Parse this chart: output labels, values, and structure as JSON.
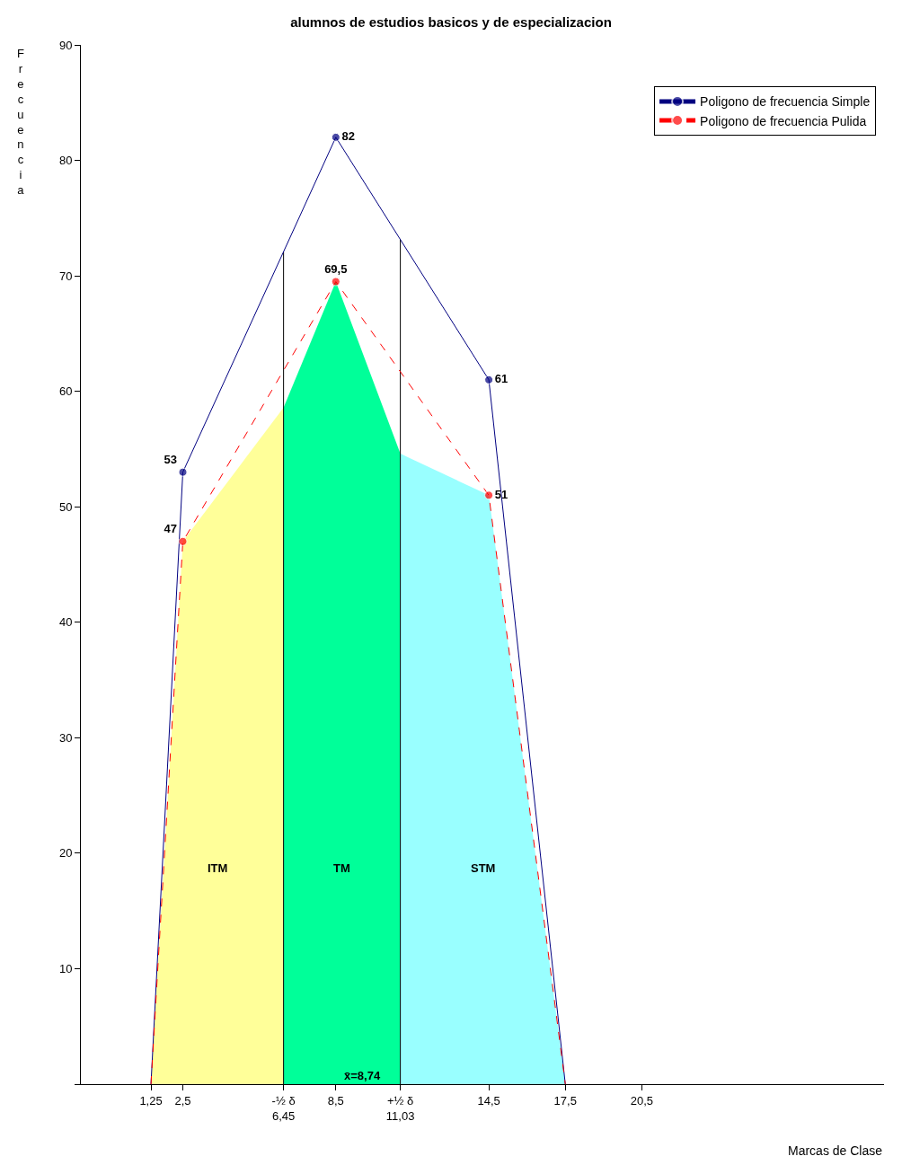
{
  "chart_data": {
    "type": "line",
    "title": "alumnos de estudios basicos y de especializacion",
    "xlabel": "Marcas de Clase",
    "ylabel": "Frecuencia",
    "x": [
      1.25,
      2.5,
      8.5,
      14.5,
      17.5
    ],
    "series": [
      {
        "name": "ITM",
        "type": "area",
        "marker": "none",
        "color": "#ffff99",
        "x": [
          1.25,
          2.5,
          6.45
        ],
        "values": [
          0,
          47,
          58.6
        ]
      },
      {
        "name": "TM",
        "type": "area",
        "marker": "none",
        "color": "#00ff99",
        "x": [
          6.45,
          8.5,
          11.03
        ],
        "values": [
          58.6,
          69.5,
          54.6
        ]
      },
      {
        "name": "STM",
        "type": "area",
        "marker": "none",
        "color": "#99ffff",
        "x": [
          11.03,
          14.5,
          17.5
        ],
        "values": [
          54.6,
          51,
          0
        ]
      },
      {
        "name": "Poligono de frecuencia Simple",
        "color": "#000080",
        "line_style": "solid",
        "values": [
          0,
          53,
          82,
          61,
          0
        ],
        "value_labels": [
          null,
          "53",
          "82",
          "61",
          null
        ]
      },
      {
        "name": "Poligono de frecuencia Pulida",
        "color": "#ff0000",
        "line_style": "dashed",
        "values": [
          0,
          47,
          69.5,
          51,
          0
        ],
        "value_labels": [
          null,
          "47",
          "69,5",
          "51",
          null
        ]
      }
    ],
    "marker": "circle",
    "xlim": [
      -1.5,
      30
    ],
    "xticks": [
      {
        "value": 1.25,
        "label": "1,25"
      },
      {
        "value": 2.5,
        "label": "2,5"
      },
      {
        "value": 6.45,
        "label": "-½ δ\n6,45"
      },
      {
        "value": 8.5,
        "label": "8,5"
      },
      {
        "value": 11.03,
        "label": "+½ δ\n11,03"
      },
      {
        "value": 14.5,
        "label": "14,5"
      },
      {
        "value": 17.5,
        "label": "17,5"
      },
      {
        "value": 20.5,
        "label": "20,5"
      }
    ],
    "ylim": [
      0,
      90
    ],
    "yticks": [
      {
        "value": 0,
        "label": null
      },
      10,
      20,
      30,
      40,
      50,
      60,
      70,
      80,
      90
    ],
    "ref_lines": [
      {
        "axis": "x",
        "value": 6.45,
        "label": null,
        "color": "#000000"
      },
      {
        "axis": "x",
        "value": 11.03,
        "label": null,
        "color": "#000000"
      }
    ],
    "annotations": [
      {
        "text": "x̄=8,74",
        "x": 8.74,
        "y": 0
      }
    ],
    "legend": "top right"
  }
}
